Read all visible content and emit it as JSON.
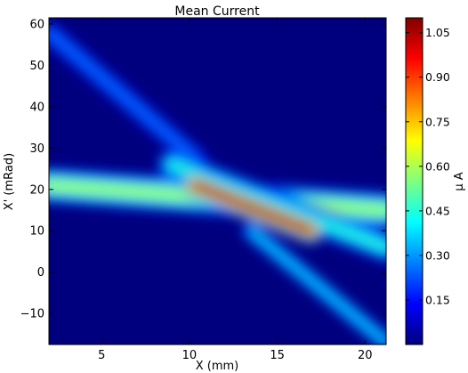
{
  "chart_data": {
    "type": "heatmap",
    "title": "Mean Current",
    "xlabel": "X (mm)",
    "ylabel": "X' (mRad)",
    "xlim": [
      2.0,
      21.2
    ],
    "ylim": [
      -17.5,
      61.5
    ],
    "x_ticks": [
      5,
      10,
      15,
      20
    ],
    "y_ticks": [
      -10,
      0,
      10,
      20,
      30,
      40,
      50,
      60
    ],
    "colorbar": {
      "label": "μ A",
      "range": [
        0.0,
        1.1
      ],
      "ticks": [
        "0.15",
        "0.30",
        "0.45",
        "0.60",
        "0.75",
        "0.90",
        "1.05"
      ],
      "tick_values": [
        0.15,
        0.3,
        0.45,
        0.6,
        0.75,
        0.9,
        1.05
      ]
    },
    "colormap": "jet",
    "colormap_stops": [
      "#00007f",
      "#0000ff",
      "#007fff",
      "#00ffff",
      "#7fff7f",
      "#ffff00",
      "#ff7f00",
      "#ff0000",
      "#7f0000"
    ],
    "background_value": 0.0,
    "bands": [
      {
        "x_start": 2.0,
        "y_start": 58.0,
        "x_end": 10.5,
        "y_end": 27.0,
        "peak": 0.26,
        "width": 3.0
      },
      {
        "x_start": 2.0,
        "y_start": 21.0,
        "x_end": 21.2,
        "y_end": 15.0,
        "peak": 0.58,
        "width": 4.0
      },
      {
        "x_start": 9.0,
        "y_start": 26.0,
        "x_end": 21.2,
        "y_end": 6.0,
        "peak": 0.45,
        "width": 3.4
      },
      {
        "x_start": 13.5,
        "y_start": 10.0,
        "x_end": 21.2,
        "y_end": -17.0,
        "peak": 0.38,
        "width": 2.2
      },
      {
        "x_start": 10.3,
        "y_start": 21.0,
        "x_end": 16.9,
        "y_end": 10.0,
        "peak": 1.1,
        "width": 2.6
      }
    ]
  }
}
